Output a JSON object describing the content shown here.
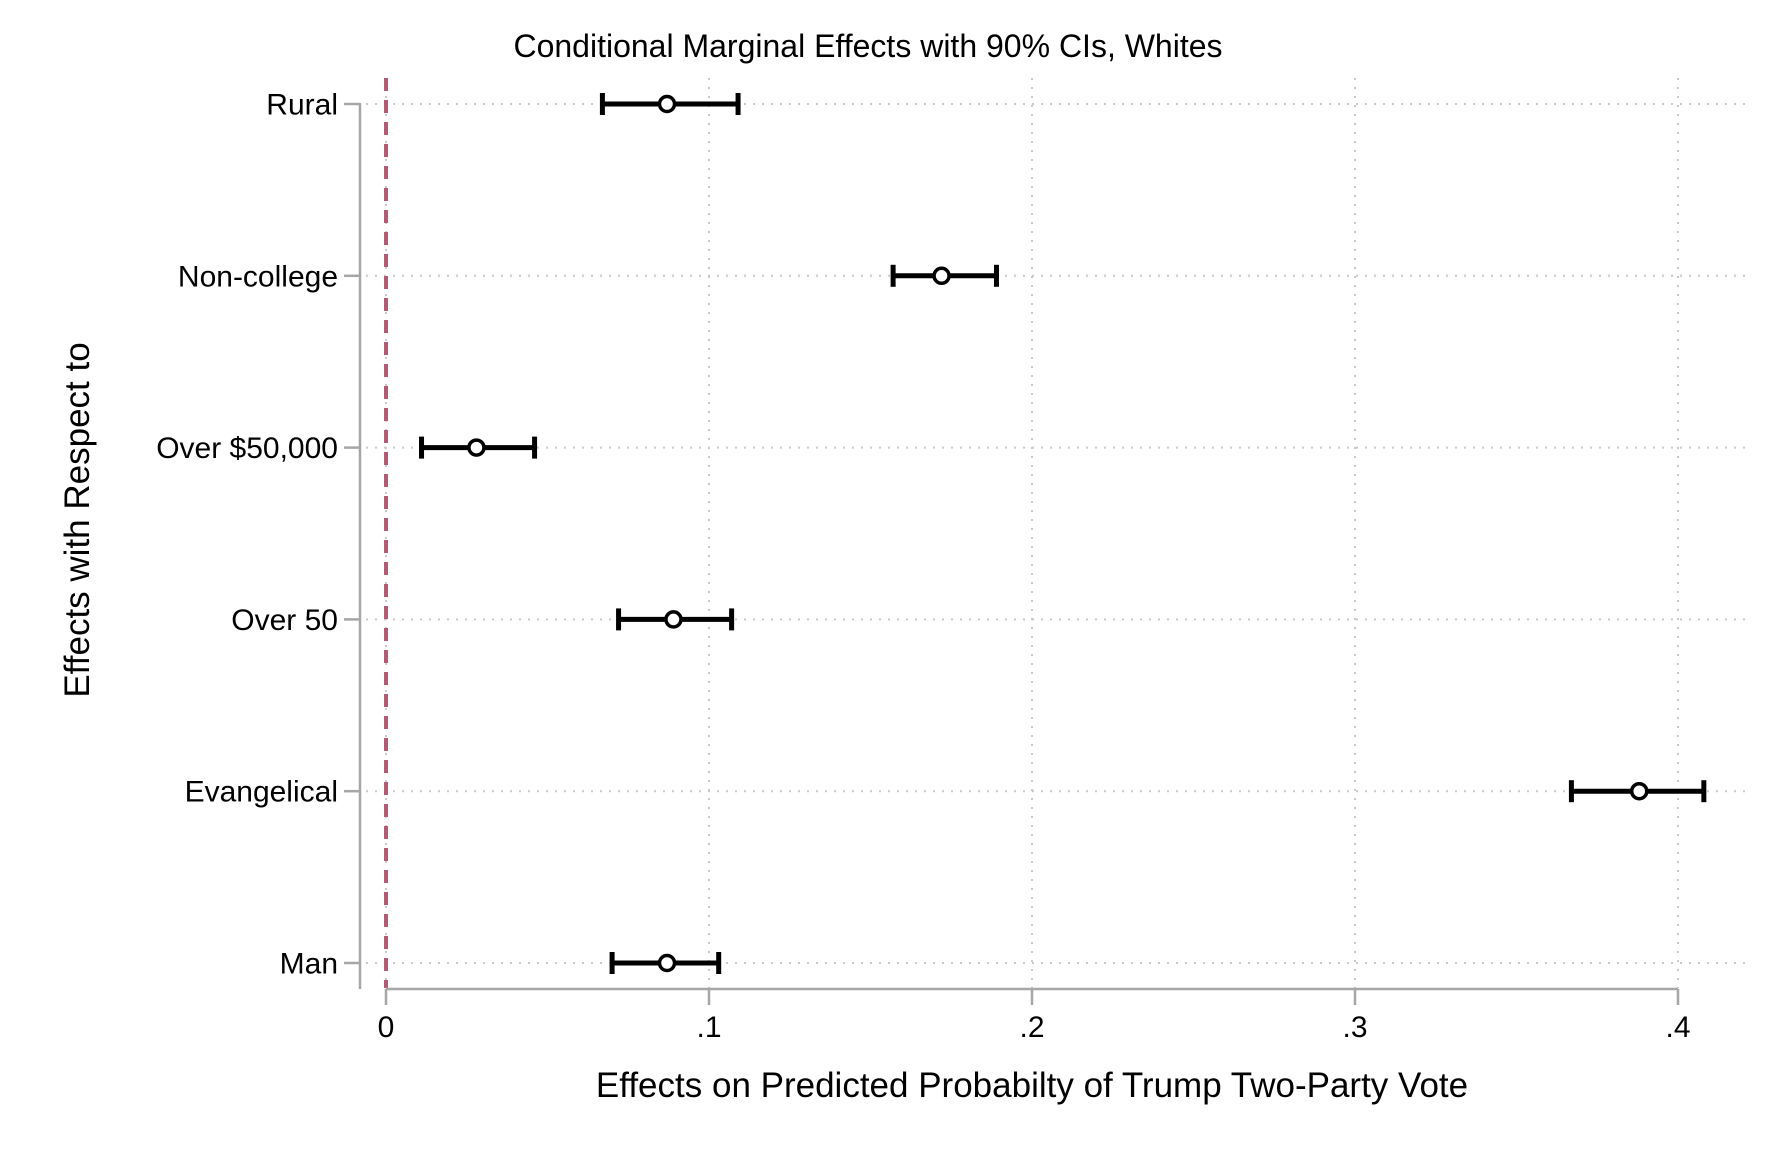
{
  "chart_data": {
    "type": "scatter",
    "title": "Conditional Marginal Effects with 90% CIs, Whites",
    "xlabel": "Effects on Predicted Probabilty of Trump Two-Party Vote",
    "ylabel": "Effects with Respect to",
    "confidence_level": "90%",
    "categories": [
      "Rural",
      "Non-college",
      "Over $50,000",
      "Over 50",
      "Evangelical",
      "Man"
    ],
    "points": [
      {
        "category": "Rural",
        "estimate": 0.087,
        "ci_low": 0.067,
        "ci_high": 0.109
      },
      {
        "category": "Non-college",
        "estimate": 0.172,
        "ci_low": 0.157,
        "ci_high": 0.189
      },
      {
        "category": "Over $50,000",
        "estimate": 0.028,
        "ci_low": 0.011,
        "ci_high": 0.046
      },
      {
        "category": "Over 50",
        "estimate": 0.089,
        "ci_low": 0.072,
        "ci_high": 0.107
      },
      {
        "category": "Evangelical",
        "estimate": 0.388,
        "ci_low": 0.367,
        "ci_high": 0.408
      },
      {
        "category": "Man",
        "estimate": 0.087,
        "ci_low": 0.07,
        "ci_high": 0.103
      }
    ],
    "x_ticks": [
      {
        "value": 0.0,
        "label": "0"
      },
      {
        "value": 0.1,
        "label": ".1"
      },
      {
        "value": 0.2,
        "label": ".2"
      },
      {
        "value": 0.3,
        "label": ".3"
      },
      {
        "value": 0.4,
        "label": ".4"
      }
    ],
    "axis_range": [
      0,
      0.4
    ],
    "reference_line_x": 0,
    "grid": true,
    "legend": false,
    "colors": {
      "marker": "#000000",
      "reference_line": "#b25b72",
      "axis": "#a6a6a6",
      "grid": "#c9c9c9",
      "text": "#000000",
      "background": "#ffffff"
    }
  }
}
